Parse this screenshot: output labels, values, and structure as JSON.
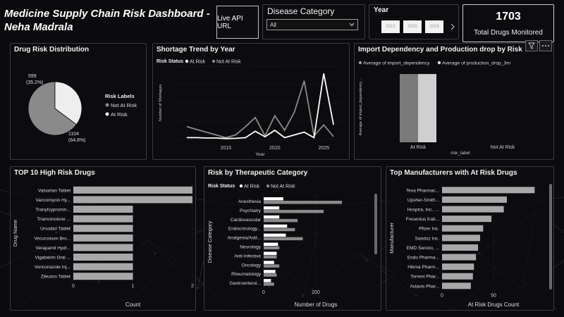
{
  "header": {
    "title_line1": "Medicine Supply Chain Risk Dashboard -",
    "title_line2": "Neha Madrala",
    "live_api_label": "Live API URL",
    "disease_category": {
      "title": "Disease Category",
      "selected": "All"
    },
    "year": {
      "title": "Year",
      "options": [
        "2012",
        "2015",
        "2016"
      ]
    },
    "kpi": {
      "value": "1703",
      "label": "Total Drugs Monitored"
    }
  },
  "icons": {
    "filter": "filter-icon",
    "more": "more-options-icon",
    "dropdown": "chevron-down-icon",
    "next": "chevron-right-icon"
  },
  "colors": {
    "at_risk": "#ffffff",
    "not_at_risk": "#8a8a8a",
    "not_at_risk_light": "#a0a0a0",
    "bar": "#a8a8a8",
    "accent_line": "#cfcfcf"
  },
  "chart_data": [
    {
      "id": "drug-risk-distribution",
      "type": "pie",
      "title": "Drug Risk Distribution",
      "legend_title": "Risk Labels",
      "legend_placement": "right",
      "slices": [
        {
          "name": "Not At Risk",
          "value": 1104,
          "label": "1104\n(64.8%)",
          "label_line1": "1104",
          "label_line2": "(64.8%)"
        },
        {
          "name": "At Risk",
          "value": 599,
          "label": "599\n(35.2%)",
          "label_line1": "599",
          "label_line2": "(35.2%)"
        }
      ]
    },
    {
      "id": "shortage-trend",
      "type": "line",
      "title": "Shortage Trend by Year",
      "legend_title": "Risk Status",
      "legend_placement": "top-left",
      "xlabel": "Year",
      "ylabel": "Number of Shortages",
      "x_ticks": [
        "2015",
        "2020",
        "2025"
      ],
      "xlim": [
        2010,
        2027
      ],
      "ylim": [
        0,
        400
      ],
      "series": [
        {
          "name": "At Risk",
          "x": [
            2011,
            2012,
            2013,
            2014,
            2015,
            2016,
            2017,
            2018,
            2019,
            2020,
            2021,
            2022,
            2023,
            2024,
            2025,
            2026
          ],
          "y": [
            10,
            10,
            8,
            8,
            5,
            6,
            10,
            45,
            15,
            50,
            10,
            25,
            40,
            10,
            360,
            80
          ]
        },
        {
          "name": "Not At Risk",
          "x": [
            2011,
            2012,
            2013,
            2014,
            2015,
            2016,
            2017,
            2018,
            2019,
            2020,
            2021,
            2022,
            2023,
            2024,
            2025,
            2026
          ],
          "y": [
            70,
            55,
            40,
            25,
            10,
            25,
            70,
            120,
            20,
            130,
            50,
            150,
            320,
            20,
            80,
            15
          ]
        }
      ]
    },
    {
      "id": "import-dependency",
      "type": "bar",
      "title": "Import Dependency and Production drop by Risk",
      "legend_placement": "top-left",
      "xlabel": "risk_label",
      "ylabel": "Average of import_dependency ...",
      "categories": [
        "At Risk",
        "Not At Risk"
      ],
      "ylim": [
        0,
        1
      ],
      "series": [
        {
          "name": "Average of import_dependency",
          "values": [
            0.95,
            0
          ]
        },
        {
          "name": "Average of production_drop_3m",
          "values": [
            0.95,
            0
          ]
        }
      ]
    },
    {
      "id": "top10-high-risk",
      "type": "bar",
      "orientation": "horizontal",
      "title": "TOP 10 High Risk Drugs",
      "xlabel": "Count",
      "ylabel": "Drug Name",
      "x_ticks": [
        "0",
        "1",
        "2"
      ],
      "xlim": [
        0,
        2
      ],
      "categories": [
        "Valsartan Tablet",
        "Vancomycin Hy...",
        "Tranylcypromin...",
        "Triamcinolone ...",
        "Ursodiol Tablet",
        "Vecuronium Bro...",
        "Verapamil Hydr...",
        "Vigabatrin Oral ...",
        "Voriconazole Inj...",
        "Zileuton Tablet"
      ],
      "values": [
        2,
        2,
        1,
        1,
        1,
        1,
        1,
        1,
        1,
        1
      ]
    },
    {
      "id": "therapeutic-category",
      "type": "bar",
      "orientation": "horizontal",
      "title": "Risk by Therapeutic Category",
      "legend_title": "Risk Status",
      "legend_placement": "top-left",
      "xlabel": "Number of Drugs",
      "ylabel": "Disease Category",
      "x_ticks": [
        "0",
        "200"
      ],
      "xlim": [
        0,
        400
      ],
      "categories": [
        "Anesthesia",
        "Psychiatry",
        "Cardiovascular",
        "Endocrinology...",
        "Analgesia/Add...",
        "Neurology",
        "Anti-Infective",
        "Oncology",
        "Rheumatology",
        "Gastroenterol..."
      ],
      "series": [
        {
          "name": "At Risk",
          "values": [
            75,
            60,
            60,
            90,
            85,
            55,
            50,
            40,
            45,
            28
          ]
        },
        {
          "name": "Not At Risk",
          "values": [
            300,
            230,
            130,
            120,
            150,
            60,
            50,
            60,
            50,
            40
          ]
        }
      ]
    },
    {
      "id": "top-manufacturers",
      "type": "bar",
      "orientation": "horizontal",
      "title": "Top Manufacturers with At Risk Drugs",
      "xlabel": "At Risk Drugs Count",
      "ylabel": "Manufacturer",
      "x_ticks": [
        "0",
        "50"
      ],
      "xlim": [
        0,
        100
      ],
      "categories": [
        "Teva Pharmac...",
        "Upsher-Smith...",
        "Hospira, Inc., ...",
        "Fresenius Kab...",
        "Pfizer Inc.",
        "Sandoz Inc.",
        "EMD Serono, ...",
        "Endo Pharma...",
        "Hikma Pharm...",
        "Torrent Phar...",
        "Actavis Phar..."
      ],
      "values": [
        90,
        63,
        60,
        48,
        40,
        37,
        35,
        33,
        31,
        30,
        28
      ]
    }
  ]
}
